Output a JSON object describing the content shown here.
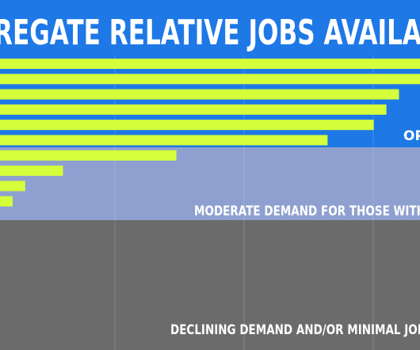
{
  "chart_data": {
    "type": "bar",
    "title": "REGATE RELATIVE JOBS AVAILA",
    "xlabel": "",
    "ylabel": "",
    "xlim": [
      0,
      100
    ],
    "grid": true,
    "values": [
      100,
      100,
      95,
      92,
      89,
      78,
      42,
      15,
      6,
      3
    ],
    "bands": [
      {
        "label": "OP",
        "color": "#1e78e6",
        "rows": [
          0,
          5
        ]
      },
      {
        "label": "MODERATE DEMAND FOR THOSE WITH",
        "color": "#8ea0cf",
        "rows": [
          6,
          9
        ]
      },
      {
        "label": "DECLINING DEMAND AND/OR MINIMAL JOB",
        "color": "#6b6b6b",
        "rows": []
      }
    ],
    "bar_color": "#d4ff3a",
    "title_band_color": "#1e78e6"
  }
}
